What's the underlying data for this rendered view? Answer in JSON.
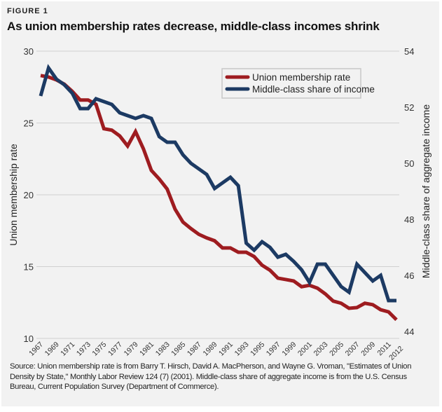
{
  "figure_label": "FIGURE 1",
  "source_note": "Source: Union membership rate is from Barry T. Hirsch, David A. MacPherson, and Wayne G. Vroman, \"Estimates of Union Density by State,\" Monthly Labor Review 124 (7) (2001). Middle-class share of aggregate income is from the U.S. Census Bureau, Current Population Survey (Department of Commerce).",
  "chart_data": {
    "type": "line",
    "title": "As union membership rates decrease, middle-class incomes shrink",
    "xlabel": "",
    "ylabel": "Union membership rate",
    "y2label": "Middle-class share of aggregate income",
    "xlim": [
      1967,
      2012
    ],
    "ylim": [
      10,
      30
    ],
    "y2lim": [
      44,
      54
    ],
    "yticks": [
      "10",
      "15",
      "20",
      "25",
      "30"
    ],
    "y2ticks": [
      "44",
      "46",
      "48",
      "50",
      "52",
      "54"
    ],
    "xticks": [
      "1967",
      "1969",
      "1971",
      "1973",
      "1975",
      "1977",
      "1979",
      "1981",
      "1983",
      "1985",
      "1987",
      "1989",
      "1991",
      "1993",
      "1995",
      "1997",
      "1999",
      "2001",
      "2003",
      "2005",
      "2007",
      "2009",
      "2011",
      "2012"
    ],
    "grid": "horizontal",
    "legend_position": "top-right",
    "x": [
      1967,
      1968,
      1969,
      1970,
      1971,
      1972,
      1973,
      1974,
      1975,
      1976,
      1977,
      1978,
      1979,
      1980,
      1981,
      1982,
      1983,
      1984,
      1985,
      1986,
      1987,
      1988,
      1989,
      1990,
      1991,
      1992,
      1993,
      1994,
      1995,
      1996,
      1997,
      1998,
      1999,
      2000,
      2001,
      2002,
      2003,
      2004,
      2005,
      2006,
      2007,
      2008,
      2009,
      2010,
      2011,
      2012
    ],
    "series": [
      {
        "name": "Union membership rate",
        "axis": "left",
        "color": "#9e1c20",
        "values": [
          28.3,
          28.2,
          28.0,
          27.7,
          27.2,
          26.6,
          26.6,
          26.3,
          24.6,
          24.5,
          24.1,
          23.4,
          24.4,
          23.2,
          21.7,
          21.1,
          20.4,
          19.0,
          18.1,
          17.65,
          17.25,
          17.0,
          16.8,
          16.3,
          16.3,
          16.0,
          16.0,
          15.7,
          15.1,
          14.75,
          14.2,
          14.1,
          14.0,
          13.6,
          13.7,
          13.5,
          13.1,
          12.6,
          12.45,
          12.1,
          12.15,
          12.45,
          12.35,
          12.0,
          11.85,
          11.3
        ]
      },
      {
        "name": "Middle-class share of income",
        "axis": "right",
        "color": "#1c3a63",
        "values": [
          52.4,
          53.4,
          53.0,
          52.8,
          52.5,
          51.95,
          51.95,
          52.3,
          52.2,
          52.1,
          51.8,
          51.7,
          51.6,
          51.7,
          51.6,
          50.95,
          50.75,
          50.75,
          50.3,
          50.0,
          49.8,
          49.6,
          49.1,
          49.3,
          49.5,
          49.2,
          47.15,
          46.9,
          47.2,
          47.0,
          46.65,
          46.75,
          46.5,
          46.2,
          45.75,
          46.4,
          46.4,
          46.0,
          45.6,
          45.4,
          46.4,
          46.1,
          45.8,
          46.0,
          45.1,
          45.1
        ]
      }
    ]
  }
}
